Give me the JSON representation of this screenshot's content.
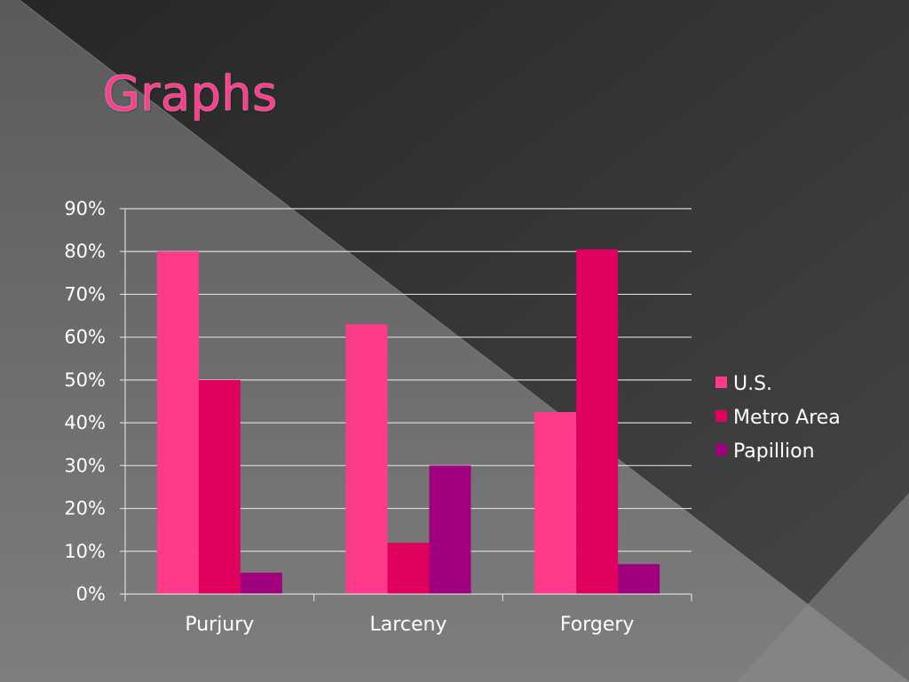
{
  "slide": {
    "title": "Graphs"
  },
  "colors": {
    "bg_dark": "#3a3a3a",
    "bg_light": "#6a6a6a",
    "grid": "#d9d9d9",
    "title": "#ff3d8c"
  },
  "chart_data": {
    "type": "bar",
    "title": "",
    "xlabel": "",
    "ylabel": "",
    "categories": [
      "Purjury",
      "Larceny",
      "Forgery"
    ],
    "series": [
      {
        "name": "U.S.",
        "color": "#ff3a8a",
        "values": [
          80,
          63,
          42.5
        ]
      },
      {
        "name": "Metro Area",
        "color": "#e0005e",
        "values": [
          50,
          12,
          80.5
        ]
      },
      {
        "name": "Papillion",
        "color": "#a0007e",
        "values": [
          5,
          30,
          7
        ]
      }
    ],
    "ylim": [
      0,
      90
    ],
    "yticks": [
      0,
      10,
      20,
      30,
      40,
      50,
      60,
      70,
      80,
      90
    ],
    "ytick_format": "percent",
    "grid": true,
    "legend_position": "right"
  }
}
